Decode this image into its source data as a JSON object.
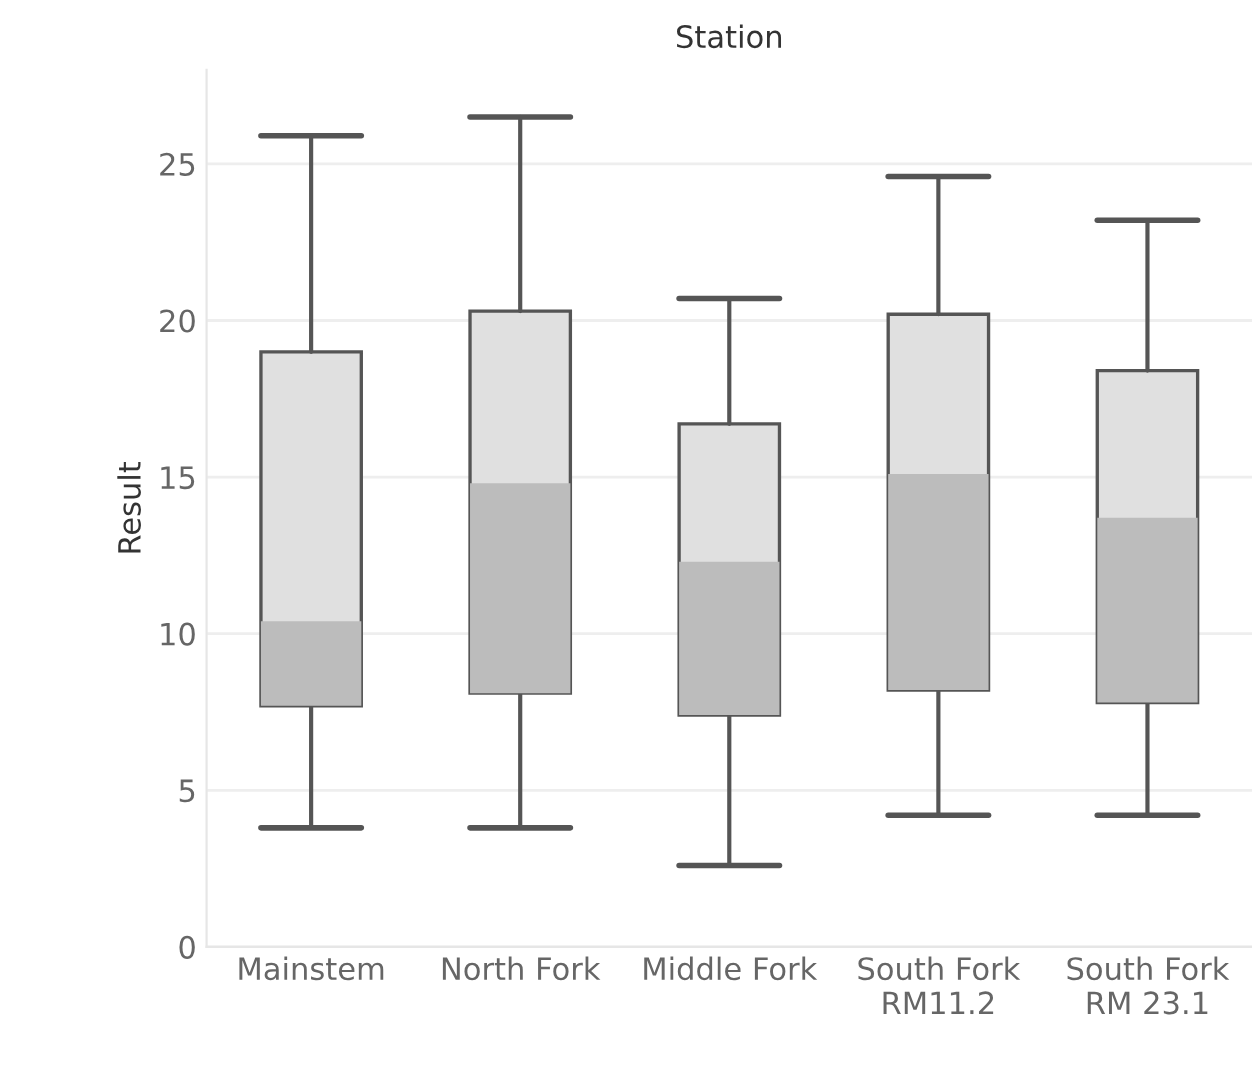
{
  "chart_data": {
    "type": "box",
    "title": "Station",
    "ylabel": "Result",
    "categories": [
      "Mainstem",
      "North Fork",
      "Middle Fork",
      "South Fork\nRM11.2",
      "South Fork\nRM 23.1"
    ],
    "boxes": [
      {
        "low": 3.8,
        "q1": 7.7,
        "median": 10.4,
        "q3": 19.0,
        "high": 25.9
      },
      {
        "low": 3.8,
        "q1": 8.1,
        "median": 14.8,
        "q3": 20.3,
        "high": 26.5
      },
      {
        "low": 2.6,
        "q1": 7.4,
        "median": 12.3,
        "q3": 16.7,
        "high": 20.7
      },
      {
        "low": 4.2,
        "q1": 8.2,
        "median": 15.1,
        "q3": 20.2,
        "high": 24.6
      },
      {
        "low": 4.2,
        "q1": 7.8,
        "median": 13.7,
        "q3": 18.4,
        "high": 23.2
      }
    ],
    "ylim": [
      0,
      28
    ],
    "yticks": [
      0,
      5,
      10,
      15,
      20,
      25
    ],
    "grid": "y"
  }
}
